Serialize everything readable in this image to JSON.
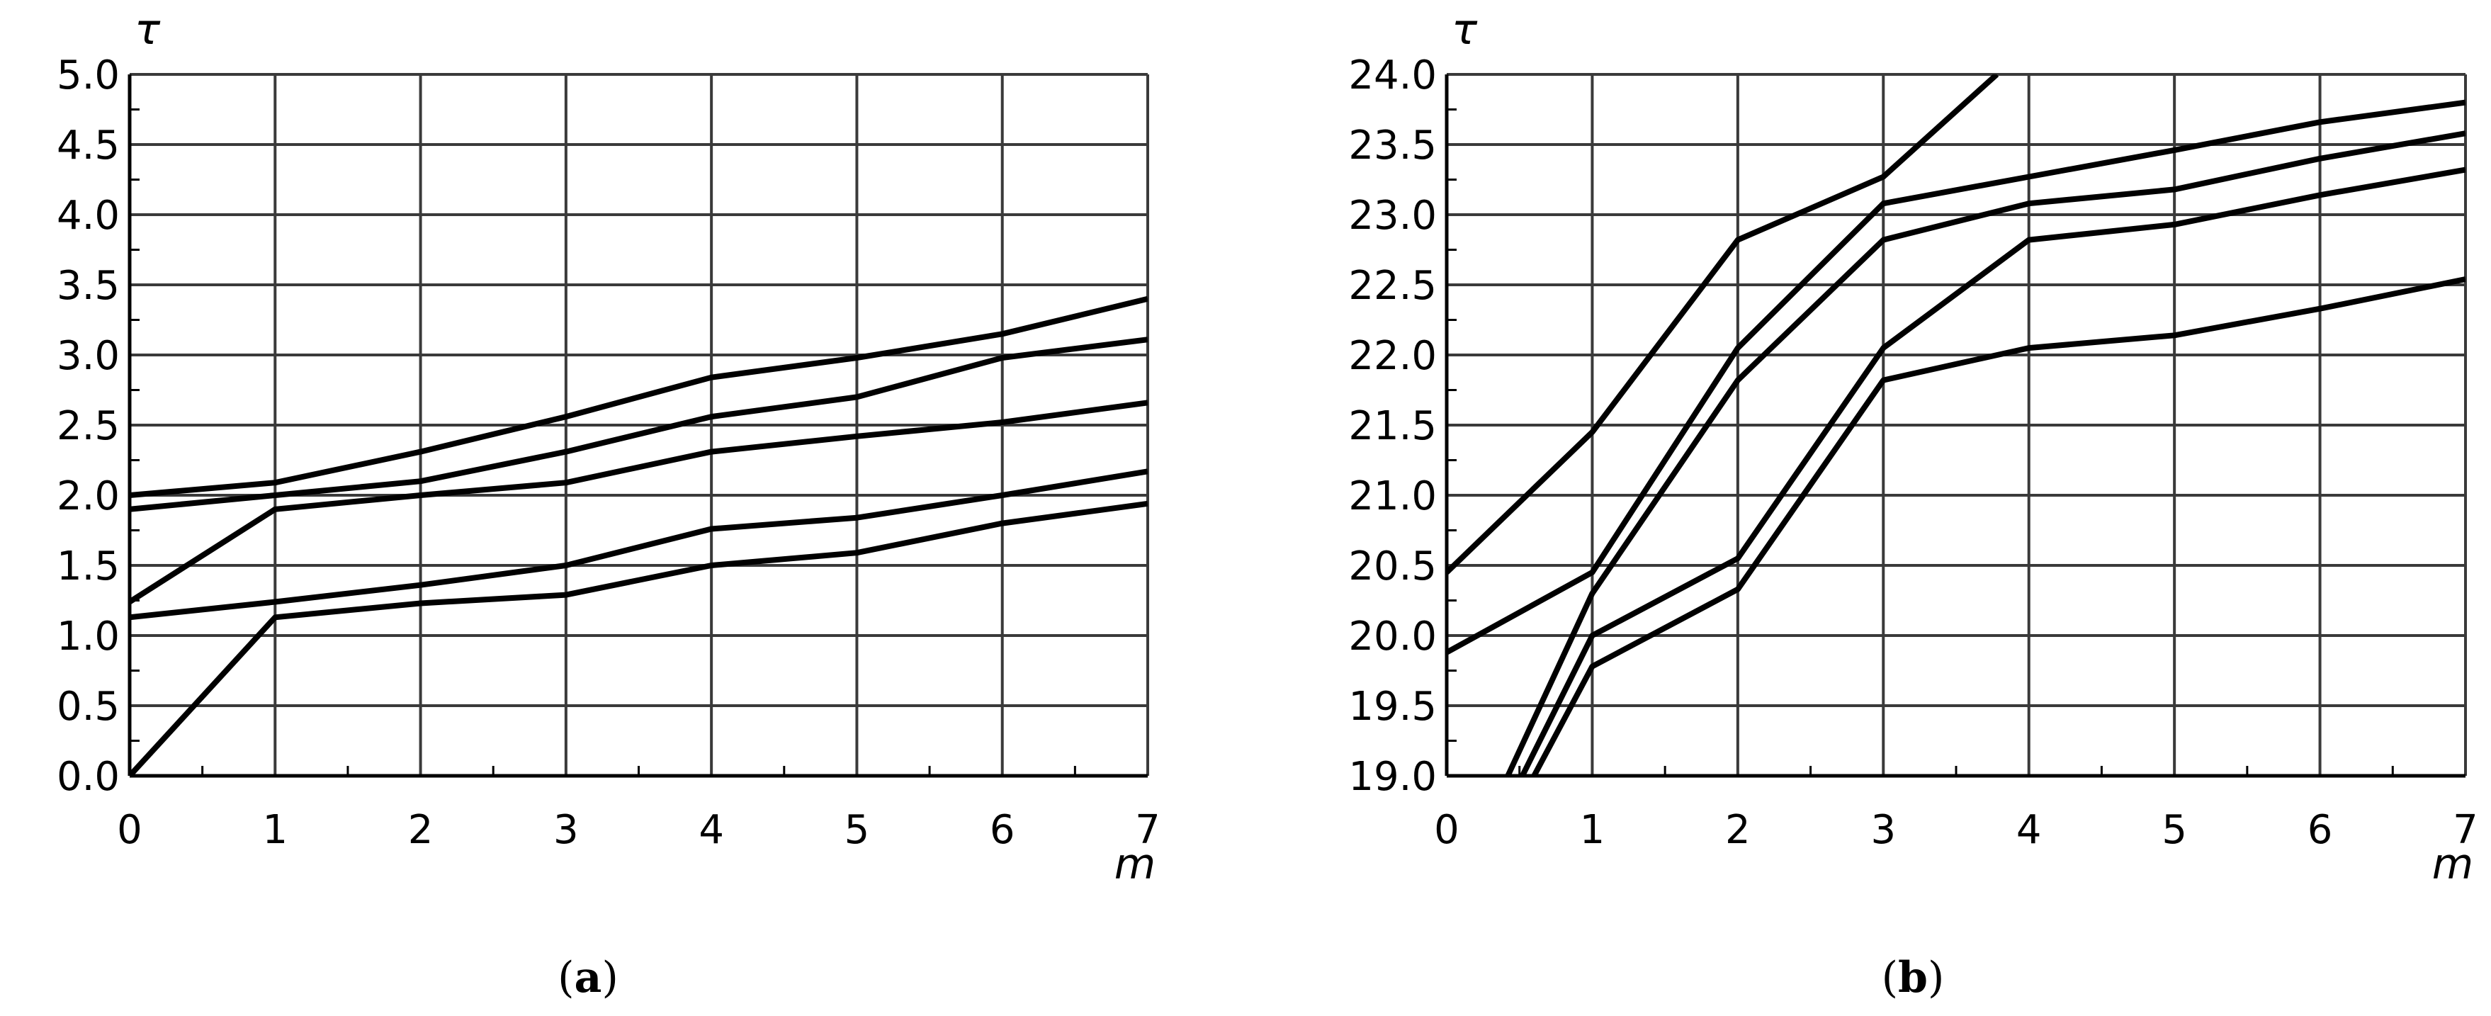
{
  "chart_data": [
    {
      "type": "line",
      "panel_label": {
        "open": "(",
        "letter": "a",
        "close": ")"
      },
      "xlabel": "m",
      "ylabel": "τ",
      "xlim": [
        0,
        7
      ],
      "ylim": [
        0,
        5
      ],
      "xticks": [
        0,
        1,
        2,
        3,
        4,
        5,
        6,
        7
      ],
      "xtick_labels": [
        "0",
        "1",
        "2",
        "3",
        "4",
        "5",
        "6",
        "7"
      ],
      "yticks": [
        0,
        0.5,
        1,
        1.5,
        2,
        2.5,
        3,
        3.5,
        4,
        4.5,
        5
      ],
      "ytick_labels": [
        "0.0",
        "0.5",
        "1.0",
        "1.5",
        "2.0",
        "2.5",
        "3.0",
        "3.5",
        "4.0",
        "4.5",
        "5.0"
      ],
      "grid": true,
      "line_color": "#000000",
      "x": [
        0,
        1,
        2,
        3,
        4,
        5,
        6,
        7
      ],
      "series": [
        {
          "values": [
            2.0,
            2.09,
            2.31,
            2.56,
            2.84,
            2.98,
            3.15,
            3.4
          ]
        },
        {
          "values": [
            1.9,
            2.0,
            2.1,
            2.31,
            2.56,
            2.7,
            2.98,
            3.11
          ]
        },
        {
          "values": [
            1.24,
            1.9,
            2.0,
            2.09,
            2.31,
            2.42,
            2.52,
            2.66
          ]
        },
        {
          "values": [
            1.13,
            1.24,
            1.36,
            1.5,
            1.76,
            1.84,
            2.0,
            2.17
          ]
        },
        {
          "values": [
            0.0,
            1.13,
            1.23,
            1.29,
            1.5,
            1.59,
            1.8,
            1.94
          ]
        }
      ]
    },
    {
      "type": "line",
      "panel_label": {
        "open": "(",
        "letter": "b",
        "close": ")"
      },
      "xlabel": "m",
      "ylabel": "τ",
      "xlim": [
        0,
        7
      ],
      "ylim": [
        19,
        24
      ],
      "xticks": [
        0,
        1,
        2,
        3,
        4,
        5,
        6,
        7
      ],
      "xtick_labels": [
        "0",
        "1",
        "2",
        "3",
        "4",
        "5",
        "6",
        "7"
      ],
      "yticks": [
        19,
        19.5,
        20,
        20.5,
        21,
        21.5,
        22,
        22.5,
        23,
        23.5,
        24
      ],
      "ytick_labels": [
        "19.0",
        "19.5",
        "20.0",
        "20.5",
        "21.0",
        "21.5",
        "22.0",
        "22.5",
        "23.0",
        "23.5",
        "24.0"
      ],
      "grid": true,
      "line_color": "#000000",
      "series": [
        {
          "x": [
            0,
            1,
            2,
            3,
            3.78
          ],
          "values": [
            20.45,
            21.45,
            22.82,
            23.27,
            24.0
          ]
        },
        {
          "x": [
            0,
            1,
            2,
            3,
            4,
            5,
            6,
            7
          ],
          "values": [
            19.88,
            20.45,
            22.05,
            23.08,
            23.27,
            23.46,
            23.66,
            23.8
          ]
        },
        {
          "x": [
            0.42,
            1,
            2,
            3,
            4,
            5,
            6,
            7
          ],
          "values": [
            19.0,
            20.3,
            21.82,
            22.82,
            23.08,
            23.18,
            23.4,
            23.58
          ]
        },
        {
          "x": [
            0.52,
            1,
            2,
            3,
            4,
            5,
            6,
            7
          ],
          "values": [
            19.0,
            20.0,
            20.55,
            22.05,
            22.82,
            22.93,
            23.14,
            23.32
          ]
        },
        {
          "x": [
            0.6,
            1,
            2,
            3,
            4,
            5,
            6,
            7
          ],
          "values": [
            19.0,
            19.78,
            20.33,
            21.82,
            22.05,
            22.14,
            22.33,
            22.54
          ]
        }
      ]
    }
  ]
}
